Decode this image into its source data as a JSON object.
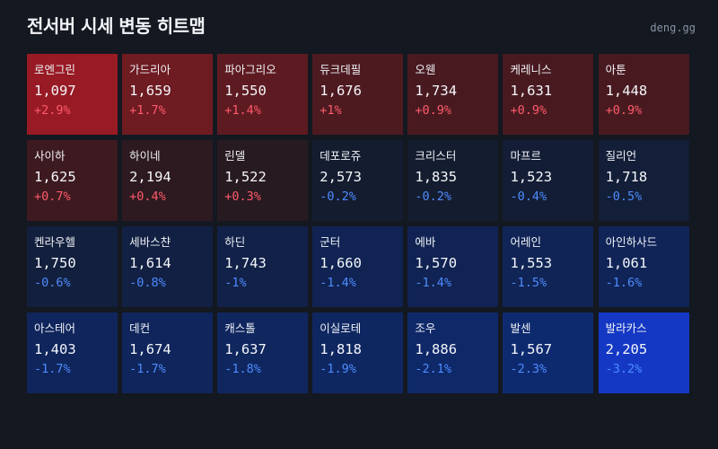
{
  "header": {
    "title": "전서버 시세 변동 히트맵",
    "brand": "deng.gg"
  },
  "tiles": [
    {
      "name": "로엔그린",
      "price": "1,097",
      "change": "+2.9%",
      "dir": "up",
      "color": "#981a24"
    },
    {
      "name": "가드리아",
      "price": "1,659",
      "change": "+1.7%",
      "dir": "up",
      "color": "#6e1b22"
    },
    {
      "name": "파아그리오",
      "price": "1,550",
      "change": "+1.4%",
      "dir": "up",
      "color": "#5e1a21"
    },
    {
      "name": "듀크데필",
      "price": "1,676",
      "change": "+1%",
      "dir": "up",
      "color": "#4d1a20"
    },
    {
      "name": "오웬",
      "price": "1,734",
      "change": "+0.9%",
      "dir": "up",
      "color": "#481a20"
    },
    {
      "name": "케레니스",
      "price": "1,631",
      "change": "+0.9%",
      "dir": "up",
      "color": "#481a20"
    },
    {
      "name": "아툰",
      "price": "1,448",
      "change": "+0.9%",
      "dir": "up",
      "color": "#481a20"
    },
    {
      "name": "사이하",
      "price": "1,625",
      "change": "+0.7%",
      "dir": "up",
      "color": "#3d1a20"
    },
    {
      "name": "하이네",
      "price": "2,194",
      "change": "+0.4%",
      "dir": "up",
      "color": "#2d1a20"
    },
    {
      "name": "린델",
      "price": "1,522",
      "change": "+0.3%",
      "dir": "up",
      "color": "#281a21"
    },
    {
      "name": "데포로쥬",
      "price": "2,573",
      "change": "-0.2%",
      "dir": "down",
      "color": "#141c2f"
    },
    {
      "name": "크리스터",
      "price": "1,835",
      "change": "-0.2%",
      "dir": "down",
      "color": "#141c2f"
    },
    {
      "name": "마프르",
      "price": "1,523",
      "change": "-0.4%",
      "dir": "down",
      "color": "#131d35"
    },
    {
      "name": "질리언",
      "price": "1,718",
      "change": "-0.5%",
      "dir": "down",
      "color": "#131e38"
    },
    {
      "name": "켄라우헬",
      "price": "1,750",
      "change": "-0.6%",
      "dir": "down",
      "color": "#121f3d"
    },
    {
      "name": "세바스챤",
      "price": "1,614",
      "change": "-0.8%",
      "dir": "down",
      "color": "#122043"
    },
    {
      "name": "하딘",
      "price": "1,743",
      "change": "-1%",
      "dir": "down",
      "color": "#112148"
    },
    {
      "name": "군터",
      "price": "1,660",
      "change": "-1.4%",
      "dir": "down",
      "color": "#102352"
    },
    {
      "name": "에바",
      "price": "1,570",
      "change": "-1.4%",
      "dir": "down",
      "color": "#102352"
    },
    {
      "name": "어레인",
      "price": "1,553",
      "change": "-1.5%",
      "dir": "down",
      "color": "#102455"
    },
    {
      "name": "아인하사드",
      "price": "1,061",
      "change": "-1.6%",
      "dir": "down",
      "color": "#102457"
    },
    {
      "name": "아스테어",
      "price": "1,403",
      "change": "-1.7%",
      "dir": "down",
      "color": "#0f255b"
    },
    {
      "name": "데컨",
      "price": "1,674",
      "change": "-1.7%",
      "dir": "down",
      "color": "#0f255b"
    },
    {
      "name": "캐스톨",
      "price": "1,637",
      "change": "-1.8%",
      "dir": "down",
      "color": "#0f265e"
    },
    {
      "name": "이실로테",
      "price": "1,818",
      "change": "-1.9%",
      "dir": "down",
      "color": "#0f2761"
    },
    {
      "name": "조우",
      "price": "1,886",
      "change": "-2.1%",
      "dir": "down",
      "color": "#0e2868"
    },
    {
      "name": "발센",
      "price": "1,567",
      "change": "-2.3%",
      "dir": "down",
      "color": "#0e2a6f"
    },
    {
      "name": "발라카스",
      "price": "2,205",
      "change": "-3.2%",
      "dir": "down",
      "color": "#1438c4"
    }
  ]
}
